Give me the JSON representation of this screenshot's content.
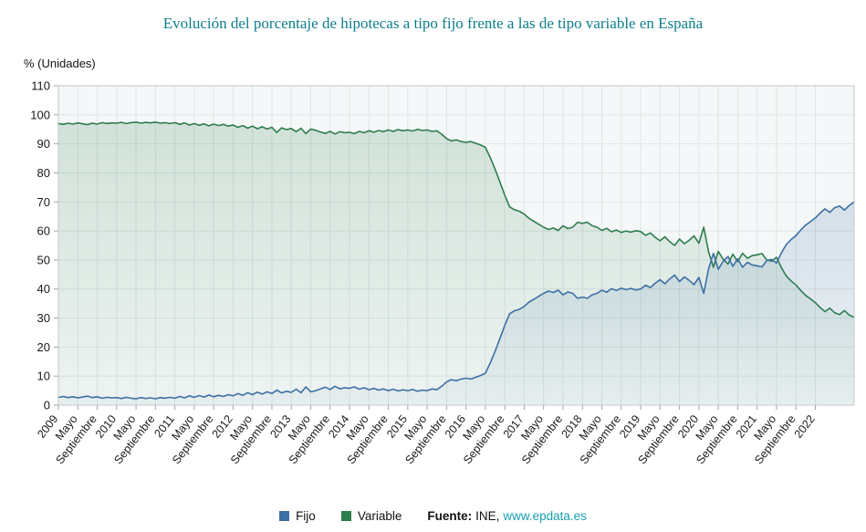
{
  "page": {
    "title": "Evolución del porcentaje de hipotecas a tipo fijo frente a las de tipo variable en España"
  },
  "axes": {
    "y_label": "% (Unidades)"
  },
  "legend": {
    "items": [
      {
        "label": "Fijo",
        "color": "#3d6fa5"
      },
      {
        "label": "Variable",
        "color": "#2e7d4c"
      }
    ],
    "source_label": "Fuente:",
    "source_org": "INE,",
    "source_link": "www.epdata.es"
  },
  "colors": {
    "title_teal": "#0e7d8c",
    "link_teal": "#18a0b0",
    "fijo_blue": "#3d6fa5",
    "variable_green": "#2e7d4c",
    "plot_bg": "#f5f8f8",
    "gridline": "#dfe5e5",
    "plot_border": "#c0c9c9"
  },
  "chart_data": {
    "type": "area",
    "title": "Evolución del porcentaje de hipotecas a tipo fijo frente a las de tipo variable en España",
    "xlabel": "",
    "ylabel": "% (Unidades)",
    "ylim": [
      0,
      110
    ],
    "y_ticks": [
      0,
      10,
      20,
      30,
      40,
      50,
      60,
      70,
      80,
      90,
      100,
      110
    ],
    "grid": true,
    "legend_position": "bottom",
    "x_unit": "month",
    "x_start": "2009-01",
    "x_end": "2022-09",
    "x_tick_every": 4,
    "x_tick_labels": [
      "2009",
      "Mayo",
      "Septiembre",
      "2010",
      "Mayo",
      "Septiembre",
      "2011",
      "Mayo",
      "Septiembre",
      "2012",
      "Mayo",
      "Septiembre",
      "2013",
      "Mayo",
      "Septiembre",
      "2014",
      "Mayo",
      "Septiembre",
      "2015",
      "Mayo",
      "Septiembre",
      "2016",
      "Mayo",
      "Septiembre",
      "2017",
      "Mayo",
      "Septiembre",
      "2018",
      "Mayo",
      "Septiembre",
      "2019",
      "Mayo",
      "Septiembre",
      "2020",
      "Mayo",
      "Septiembre",
      "2021",
      "Mayo",
      "Septiembre",
      "2022"
    ],
    "series": [
      {
        "name": "Fijo",
        "color": "#3d6fa5",
        "values": [
          2.7,
          3.0,
          2.6,
          2.9,
          2.5,
          2.8,
          3.1,
          2.6,
          2.9,
          2.4,
          2.7,
          2.5,
          2.6,
          2.3,
          2.7,
          2.4,
          2.2,
          2.6,
          2.3,
          2.5,
          2.2,
          2.6,
          2.4,
          2.7,
          2.4,
          3.0,
          2.5,
          3.2,
          2.7,
          3.3,
          2.8,
          3.5,
          2.9,
          3.4,
          3.0,
          3.6,
          3.2,
          4.0,
          3.4,
          4.3,
          3.6,
          4.5,
          3.8,
          4.6,
          4.0,
          5.2,
          4.2,
          4.8,
          4.4,
          5.5,
          4.3,
          6.3,
          4.6,
          5.0,
          5.6,
          6.2,
          5.4,
          6.5,
          5.6,
          6.0,
          5.8,
          6.3,
          5.5,
          6.0,
          5.3,
          5.8,
          5.2,
          5.6,
          5.0,
          5.5,
          4.9,
          5.3,
          5.0,
          5.4,
          4.8,
          5.2,
          5.0,
          5.6,
          5.3,
          6.5,
          8.0,
          8.8,
          8.4,
          9.0,
          9.3,
          9.0,
          9.6,
          10.2,
          11.0,
          14.5,
          18.5,
          23.0,
          27.5,
          31.5,
          32.5,
          33.0,
          34.0,
          35.5,
          36.5,
          37.5,
          38.5,
          39.3,
          38.8,
          39.6,
          38.0,
          39.0,
          38.5,
          36.8,
          37.2,
          36.8,
          38.0,
          38.5,
          39.6,
          38.9,
          40.1,
          39.5,
          40.3,
          39.8,
          40.2,
          39.7,
          40.0,
          41.3,
          40.5,
          42.0,
          43.2,
          41.8,
          43.5,
          44.8,
          42.6,
          44.2,
          43.0,
          41.5,
          44.0,
          38.5,
          47.0,
          52.3,
          46.8,
          49.5,
          51.2,
          47.8,
          50.4,
          47.5,
          49.2,
          48.3,
          48.0,
          47.6,
          49.8,
          50.2,
          48.9,
          52.4,
          55.3,
          57.0,
          58.4,
          60.3,
          62.0,
          63.2,
          64.5,
          66.2,
          67.6,
          66.4,
          68.0,
          68.6,
          67.2,
          68.8,
          70.0
        ]
      },
      {
        "name": "Variable",
        "color": "#2e7d4c",
        "values": [
          97.0,
          96.7,
          97.1,
          96.8,
          97.2,
          96.9,
          96.6,
          97.1,
          96.8,
          97.3,
          97.0,
          97.2,
          97.1,
          97.4,
          97.0,
          97.3,
          97.5,
          97.1,
          97.4,
          97.2,
          97.5,
          97.1,
          97.3,
          97.0,
          97.3,
          96.7,
          97.2,
          96.5,
          97.0,
          96.4,
          96.9,
          96.2,
          96.8,
          96.3,
          96.7,
          96.1,
          96.5,
          95.7,
          96.3,
          95.4,
          96.1,
          95.2,
          95.9,
          95.1,
          95.7,
          93.9,
          95.5,
          94.9,
          95.3,
          94.2,
          95.4,
          93.5,
          95.1,
          94.7,
          94.1,
          93.6,
          94.3,
          93.4,
          94.2,
          93.8,
          94.0,
          93.5,
          94.3,
          93.8,
          94.5,
          94.0,
          94.6,
          94.2,
          94.8,
          94.3,
          94.9,
          94.5,
          94.8,
          94.4,
          95.0,
          94.6,
          94.8,
          94.3,
          94.5,
          93.3,
          91.8,
          91.0,
          91.4,
          90.8,
          90.5,
          90.8,
          90.2,
          89.6,
          88.8,
          85.3,
          81.3,
          76.8,
          72.3,
          68.3,
          67.3,
          66.8,
          65.8,
          64.3,
          63.3,
          62.3,
          61.3,
          60.5,
          61.0,
          60.2,
          61.8,
          60.8,
          61.3,
          63.0,
          62.6,
          63.0,
          61.8,
          61.3,
          60.2,
          60.9,
          59.7,
          60.3,
          59.5,
          60.0,
          59.6,
          60.1,
          59.8,
          58.5,
          59.3,
          57.8,
          56.6,
          58.0,
          56.3,
          55.0,
          57.2,
          55.6,
          56.8,
          58.3,
          55.8,
          61.3,
          52.8,
          47.5,
          53.0,
          50.3,
          48.6,
          52.0,
          49.4,
          52.3,
          50.6,
          51.5,
          51.8,
          52.2,
          50.0,
          49.6,
          50.9,
          47.4,
          44.5,
          42.8,
          41.4,
          39.5,
          37.8,
          36.6,
          35.3,
          33.6,
          32.2,
          33.4,
          31.8,
          31.2,
          32.6,
          31.0,
          30.3
        ]
      }
    ]
  }
}
